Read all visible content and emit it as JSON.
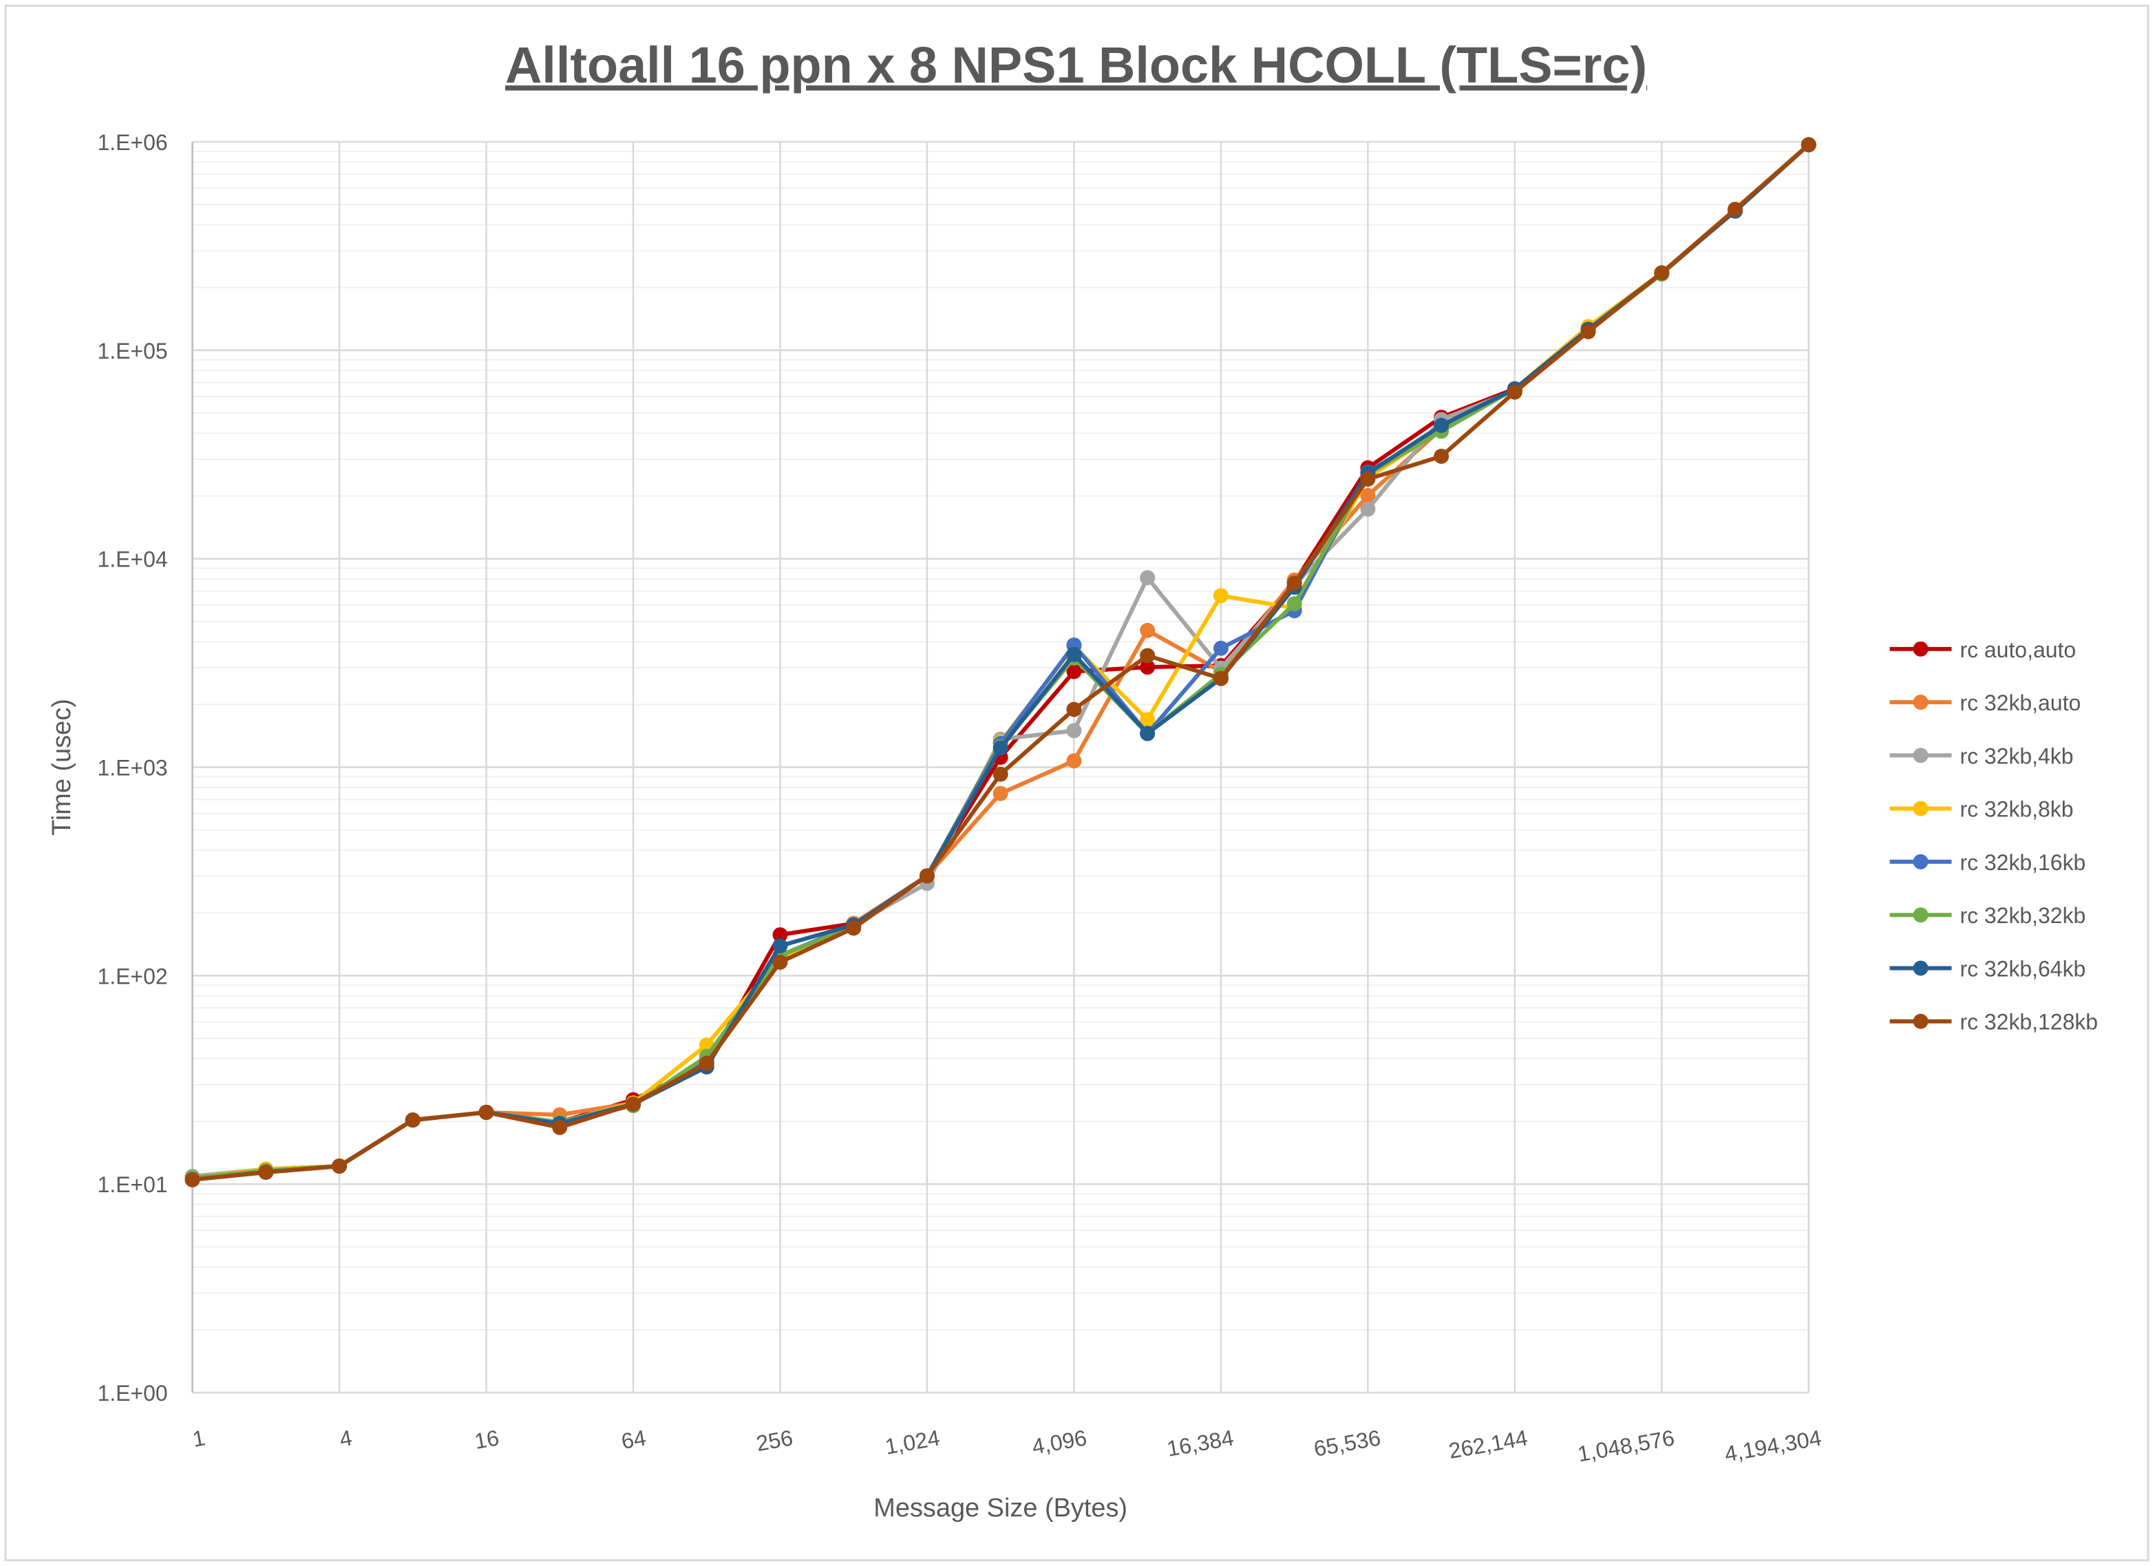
{
  "chart_data": {
    "type": "line",
    "title": "Alltoall 16 ppn x 8 NPS1 Block HCOLL (TLS=rc)",
    "xlabel": "Message Size (Bytes)",
    "ylabel": "Time (usec)",
    "x_scale": "log2",
    "y_scale": "log10",
    "ylim": [
      1,
      1000000
    ],
    "grid": true,
    "legend": "right",
    "x": [
      1,
      2,
      4,
      8,
      16,
      32,
      64,
      128,
      256,
      512,
      1024,
      2048,
      4096,
      8192,
      16384,
      32768,
      65536,
      131072,
      262144,
      524288,
      1048576,
      2097152,
      4194304
    ],
    "x_tick_labels": [
      "1",
      "4",
      "16",
      "64",
      "256",
      "1,024",
      "4,096",
      "16,384",
      "65,536",
      "262,144",
      "1,048,576",
      "4,194,304"
    ],
    "y_tick_labels": [
      "1.E+00",
      "1.E+01",
      "1.E+02",
      "1.E+03",
      "1.E+04",
      "1.E+05",
      "1.E+06"
    ],
    "series": [
      {
        "name": "rc auto,auto",
        "color": "#C00000",
        "values": [
          10.7,
          11.8,
          12.2,
          20.3,
          22.1,
          19.8,
          25.4,
          37.5,
          157,
          178,
          301,
          1115,
          2877,
          3020,
          3070,
          7700,
          27300,
          47700,
          65300,
          126000,
          235000,
          474000,
          968000
        ]
      },
      {
        "name": "rc 32kb,auto",
        "color": "#ED7D31",
        "values": [
          10.7,
          11.8,
          12.2,
          20.3,
          22.1,
          21.5,
          24.5,
          38,
          120,
          178,
          301,
          748,
          1072,
          4530,
          2880,
          7900,
          20100,
          42000,
          65300,
          126000,
          235000,
          474000,
          968000
        ]
      },
      {
        "name": "rc 32kb,4kb",
        "color": "#A5A5A5",
        "values": [
          10.9,
          11.8,
          12.2,
          20.3,
          22.1,
          19.8,
          24.2,
          39,
          120,
          175,
          277,
          1363,
          1497,
          8110,
          2985,
          7500,
          17300,
          46500,
          64000,
          126000,
          235000,
          470000,
          968000
        ]
      },
      {
        "name": "rc 32kb,8kb",
        "color": "#FFC000",
        "values": [
          10.7,
          11.8,
          12.2,
          20.3,
          22.1,
          19.8,
          24.5,
          46.5,
          122,
          172,
          301,
          1320,
          3800,
          1690,
          6650,
          5800,
          24500,
          41500,
          65300,
          130000,
          235000,
          474000,
          968000
        ]
      },
      {
        "name": "rc 32kb,16kb",
        "color": "#4472C4",
        "values": [
          10.7,
          11.6,
          12.2,
          20.3,
          22.1,
          19.8,
          24.2,
          39.5,
          125,
          175,
          301,
          1300,
          3855,
          1450,
          3720,
          5630,
          26000,
          42500,
          65300,
          126000,
          235000,
          470000,
          968000
        ]
      },
      {
        "name": "rc 32kb,32kb",
        "color": "#70AD47",
        "values": [
          10.7,
          11.6,
          12.2,
          20.3,
          22.1,
          19.8,
          23.8,
          41,
          125,
          172,
          301,
          1250,
          3340,
          1450,
          2800,
          6080,
          25500,
          40900,
          65300,
          124000,
          232000,
          470000,
          968000
        ]
      },
      {
        "name": "rc 32kb,64kb",
        "color": "#255E91",
        "values": [
          10.5,
          11.4,
          12.2,
          20.3,
          22.1,
          19.5,
          24.2,
          36.5,
          139,
          175,
          301,
          1235,
          3475,
          1452,
          2665,
          7300,
          25700,
          43600,
          65300,
          126000,
          235000,
          465000,
          968000
        ]
      },
      {
        "name": "rc 32kb,128kb",
        "color": "#9E480E",
        "values": [
          10.5,
          11.4,
          12.2,
          20.3,
          22.1,
          18.7,
          24.2,
          38,
          116,
          169,
          301,
          925,
          1893,
          3430,
          2665,
          7640,
          24100,
          31000,
          63000,
          122800,
          235000,
          474000,
          968000
        ]
      }
    ]
  }
}
